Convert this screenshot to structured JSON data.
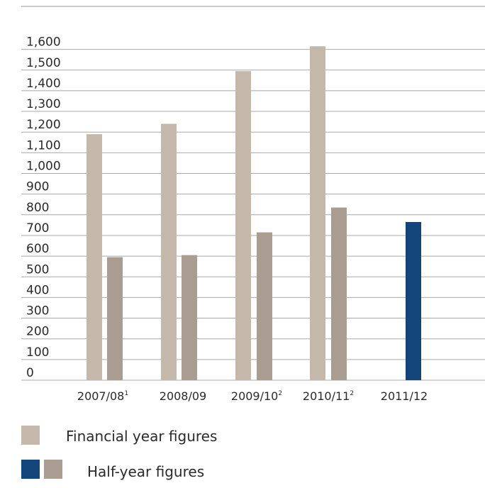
{
  "chart_data": {
    "type": "bar",
    "categories": [
      "2007/08",
      "2008/09",
      "2009/10",
      "2010/11",
      "2011/12"
    ],
    "category_superscripts": [
      "1",
      "",
      "2",
      "2",
      ""
    ],
    "y_ticks": [
      "0",
      "100",
      "200",
      "300",
      "400",
      "500",
      "600",
      "700",
      "800",
      "900",
      "1,000",
      "1,100",
      "1,200",
      "1,300",
      "1,400",
      "1,500",
      "1,600"
    ],
    "ylim": [
      0,
      1650
    ],
    "grid": true,
    "series": [
      {
        "name": "Financial year figures",
        "values": [
          1190,
          1240,
          1495,
          1615,
          null
        ],
        "color": "#c4b8aa"
      },
      {
        "name": "Half-year figures",
        "values": [
          595,
          605,
          715,
          835,
          765
        ],
        "color": "#a99d91",
        "highlight_color": "#13457a"
      }
    ]
  },
  "legend": {
    "financial_label": "Financial year figures",
    "half_label": "Half-year figures"
  },
  "colors": {
    "grid": "#a8a8a8",
    "frame": "#a9a9a9",
    "axis_text": "#2a2a2a"
  }
}
